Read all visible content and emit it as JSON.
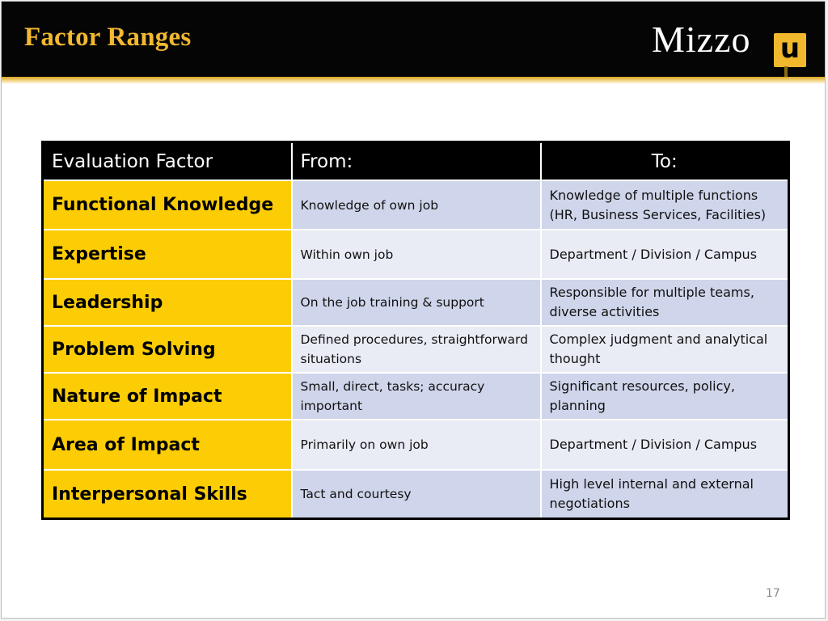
{
  "slide": {
    "title": "Factor Ranges",
    "logo_text": "Mizzo",
    "logo_badge": "u",
    "page_number": "17"
  },
  "table": {
    "headers": [
      "Evaluation Factor",
      "From:",
      "To:"
    ],
    "rows": [
      {
        "factor": "Functional Knowledge",
        "from": "Knowledge of own job",
        "to": "Knowledge of multiple functions (HR, Business Services, Facilities)"
      },
      {
        "factor": "Expertise",
        "from": "Within own job",
        "to": "Department / Division / Campus"
      },
      {
        "factor": "Leadership",
        "from": "On the job training & support",
        "to": "Responsible for multiple teams, diverse activities"
      },
      {
        "factor": "Problem Solving",
        "from": "Defined procedures, straightforward situations",
        "to": "Complex judgment and analytical thought"
      },
      {
        "factor": "Nature of Impact",
        "from": "Small, direct, tasks; accuracy important",
        "to": "Significant resources, policy, planning"
      },
      {
        "factor": "Area of Impact",
        "from": "Primarily on own job",
        "to": "Department / Division / Campus"
      },
      {
        "factor": "Interpersonal Skills",
        "from": "Tact and courtesy",
        "to": "High level internal and external negotiations"
      }
    ]
  },
  "colors": {
    "header_bar": "#050505",
    "title_gold": "#f2b830",
    "factor_gold": "#fccd05",
    "row_shade_a": "#cfd5ea",
    "row_shade_b": "#e9ebf5"
  }
}
